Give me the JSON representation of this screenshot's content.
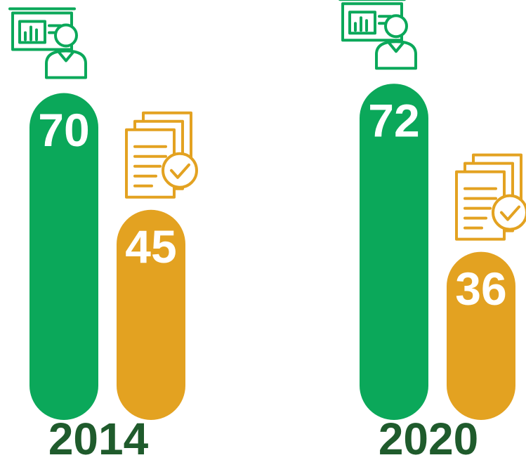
{
  "chart_data": {
    "type": "bar",
    "categories": [
      "2014",
      "2020"
    ],
    "series": [
      {
        "color": "#0ba85a",
        "values": [
          70,
          72
        ]
      },
      {
        "color": "#e3a221",
        "values": [
          45,
          36
        ]
      }
    ]
  }
}
